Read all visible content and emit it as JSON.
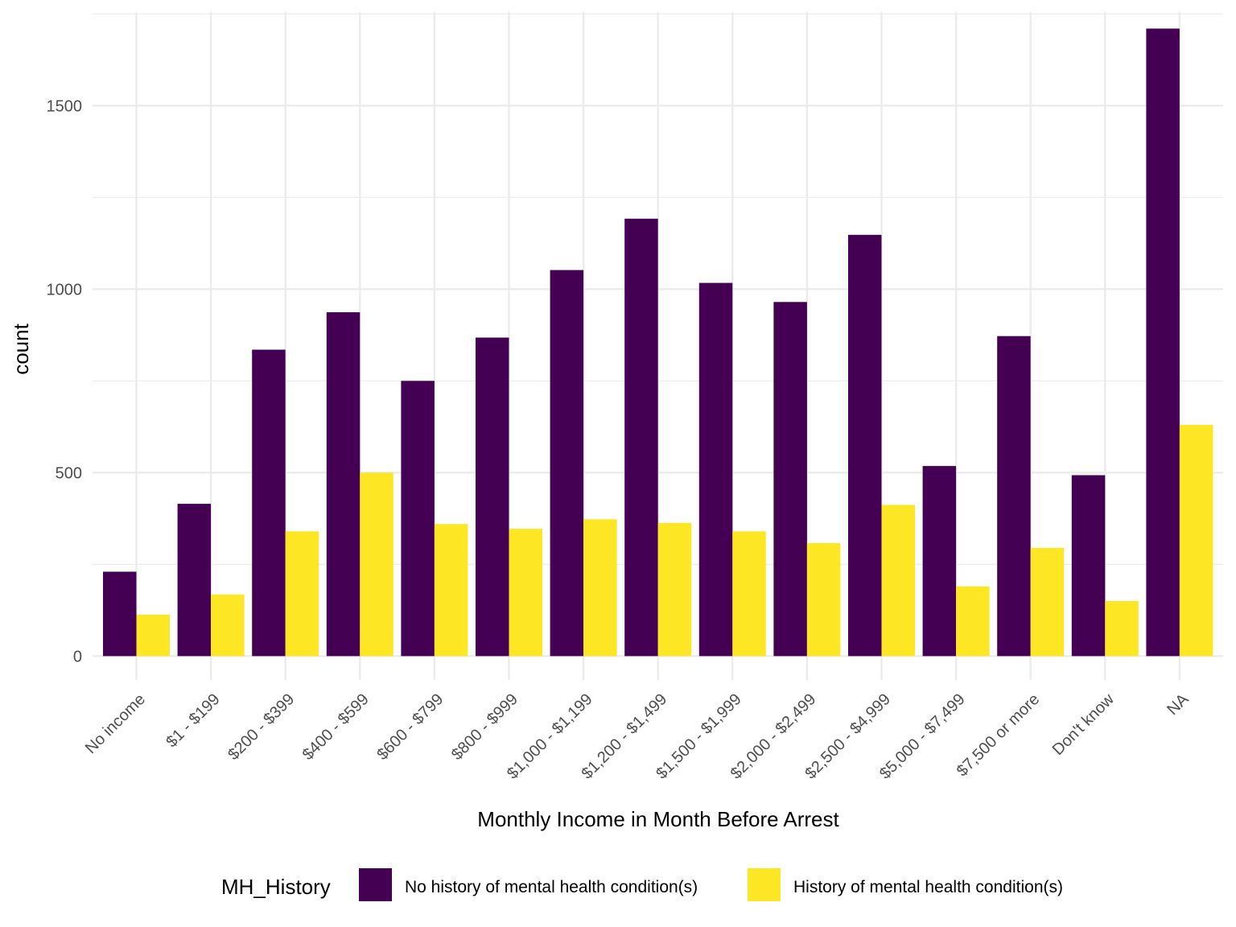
{
  "chart_data": {
    "type": "bar",
    "xlabel": "Monthly Income in Month Before Arrest",
    "ylabel": "count",
    "ylim": [
      -65,
      1755
    ],
    "yticks": [
      0,
      500,
      1000,
      1500
    ],
    "grid": true,
    "legend_position": "bottom",
    "legend_title": "MH_History",
    "categories": [
      "No income",
      "$1 - $199",
      "$200 - $399",
      "$400 - $599",
      "$600 - $799",
      "$800 - $999",
      "$1,000 - $1,199",
      "$1,200 - $1,499",
      "$1,500 - $1,999",
      "$2,000 - $2,499",
      "$2,500 - $4,999",
      "$5,000 - $7,499",
      "$7,500 or more",
      "Don't know",
      "NA"
    ],
    "series": [
      {
        "name": "No history of mental health condition(s)",
        "color": "#440154",
        "values": [
          230,
          415,
          835,
          937,
          750,
          868,
          1052,
          1192,
          1017,
          965,
          1148,
          518,
          872,
          493,
          1710
        ]
      },
      {
        "name": "History of mental health condition(s)",
        "color": "#FDE725",
        "values": [
          113,
          168,
          340,
          500,
          360,
          347,
          373,
          363,
          340,
          308,
          412,
          190,
          295,
          150,
          630
        ]
      }
    ]
  }
}
